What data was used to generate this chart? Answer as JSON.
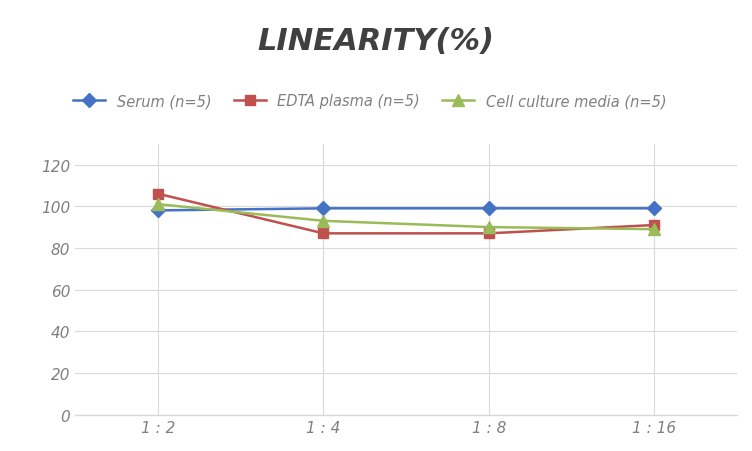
{
  "title": "LINEARITY(%)",
  "x_labels": [
    "1 : 2",
    "1 : 4",
    "1 : 8",
    "1 : 16"
  ],
  "x_positions": [
    0,
    1,
    2,
    3
  ],
  "series": [
    {
      "label": "Serum (n=5)",
      "values": [
        98,
        99,
        99,
        99
      ],
      "color": "#4472C4",
      "marker": "D",
      "marker_size": 7,
      "linewidth": 1.8
    },
    {
      "label": "EDTA plasma (n=5)",
      "values": [
        106,
        87,
        87,
        91
      ],
      "color": "#C0504D",
      "marker": "s",
      "marker_size": 7,
      "linewidth": 1.8
    },
    {
      "label": "Cell culture media (n=5)",
      "values": [
        101,
        93,
        90,
        89
      ],
      "color": "#9BBB59",
      "marker": "^",
      "marker_size": 8,
      "linewidth": 1.8
    }
  ],
  "ylim": [
    0,
    130
  ],
  "yticks": [
    0,
    20,
    40,
    60,
    80,
    100,
    120
  ],
  "grid_color": "#D9D9D9",
  "background_color": "#FFFFFF",
  "title_fontsize": 22,
  "legend_fontsize": 10.5,
  "tick_fontsize": 11,
  "title_style": "italic",
  "title_weight": "bold",
  "title_color": "#404040",
  "tick_color": "#808080"
}
